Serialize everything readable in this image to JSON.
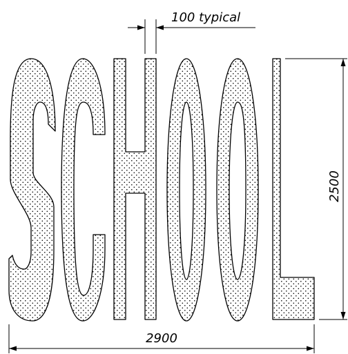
{
  "diagram": {
    "lettering": "SCHOOL",
    "hatch": "dotted",
    "stroke_color": "#000000",
    "background": "#ffffff",
    "dimensions": {
      "stroke_width_label": "100 typical",
      "height_label": "2500",
      "width_label": "2900"
    }
  }
}
